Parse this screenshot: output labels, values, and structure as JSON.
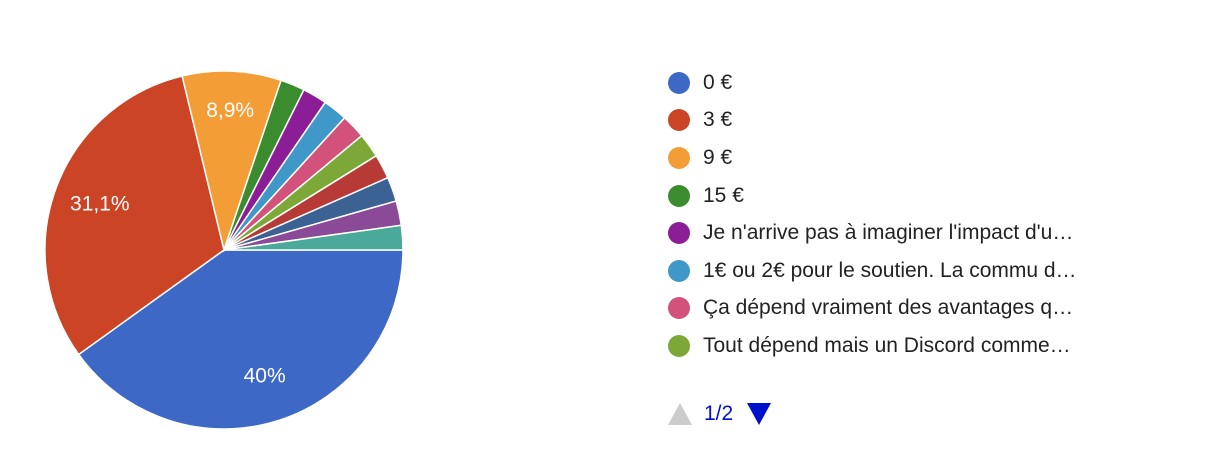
{
  "chart_data": {
    "type": "pie",
    "slices": [
      {
        "label": "0 €",
        "value": 40,
        "color": "#3d68c6",
        "data_label": "40%"
      },
      {
        "label": "3 €",
        "value": 31.1,
        "color": "#cc4426",
        "data_label": "31,1%"
      },
      {
        "label": "9 €",
        "value": 8.9,
        "color": "#f29d36",
        "data_label": "8,9%"
      },
      {
        "label": "15 €",
        "value": 2.2,
        "color": "#3b8c2e",
        "data_label": ""
      },
      {
        "label": "Je n'arrive pas à imaginer l'impact d'u…",
        "value": 2.2,
        "color": "#8b1d96",
        "data_label": ""
      },
      {
        "label": "1€ ou 2€ pour le soutien. La commu d…",
        "value": 2.2,
        "color": "#3f98c7",
        "data_label": ""
      },
      {
        "label": "Ça dépend vraiment des avantages q…",
        "value": 2.2,
        "color": "#d2527c",
        "data_label": ""
      },
      {
        "label": "Tout dépend mais un Discord comme…",
        "value": 2.2,
        "color": "#7ca837",
        "data_label": ""
      },
      {
        "label": "",
        "value": 2.2,
        "color": "#b73a37",
        "data_label": ""
      },
      {
        "label": "",
        "value": 2.2,
        "color": "#3c6293",
        "data_label": ""
      },
      {
        "label": "",
        "value": 2.2,
        "color": "#8a4a98",
        "data_label": ""
      },
      {
        "label": "",
        "value": 2.2,
        "color": "#4aa99b",
        "data_label": ""
      }
    ],
    "legend_position": "right"
  },
  "legend": {
    "items": [
      {
        "label": "0 €",
        "color": "#3d68c6"
      },
      {
        "label": "3 €",
        "color": "#cc4426"
      },
      {
        "label": "9 €",
        "color": "#f29d36"
      },
      {
        "label": "15 €",
        "color": "#3b8c2e"
      },
      {
        "label": "Je n'arrive pas à imaginer l'impact d'u…",
        "color": "#8b1d96"
      },
      {
        "label": "1€ ou 2€ pour le soutien. La commu d…",
        "color": "#3f98c7"
      },
      {
        "label": "Ça dépend vraiment des avantages q…",
        "color": "#d2527c"
      },
      {
        "label": "Tout dépend mais un Discord comme…",
        "color": "#7ca837"
      }
    ]
  },
  "pager": {
    "text": "1/2",
    "prev_icon": "triangle-up-icon",
    "next_icon": "triangle-down-icon",
    "active_color": "#0011cc",
    "disabled_color": "#cccccc"
  }
}
